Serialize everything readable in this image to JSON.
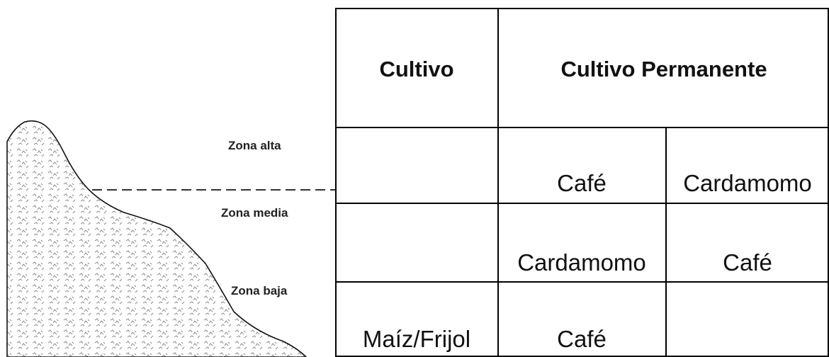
{
  "zones": [
    "Zona alta",
    "Zona media",
    "Zona baja"
  ],
  "table": {
    "header": [
      "Cultivo",
      "Cultivo Permanente"
    ],
    "rows": [
      [
        null,
        "Café",
        "Cardamomo"
      ],
      [
        null,
        "Cardamomo",
        "Café"
      ],
      [
        "Maíz/Frijol",
        "Café",
        null
      ]
    ]
  }
}
